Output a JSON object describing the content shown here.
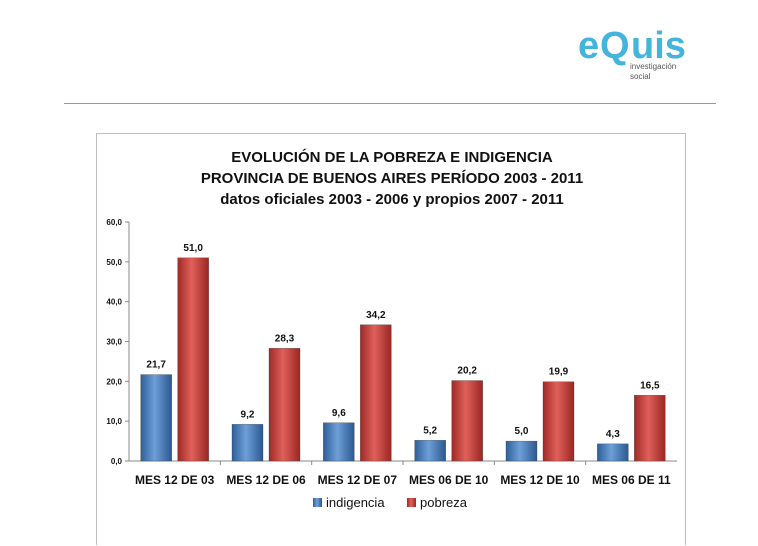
{
  "logo": {
    "brand_pre": "e",
    "brand_q": "Q",
    "brand_post": "uis",
    "line1": "investigación",
    "line2": "social",
    "color": "#43b4dc"
  },
  "chart_data": {
    "type": "bar",
    "title": [
      "EVOLUCIÓN DE LA POBREZA E INDIGENCIA",
      "PROVINCIA DE BUENOS AIRES PERÍODO 2003 - 2011",
      "datos oficiales 2003 - 2006 y propios 2007 - 2011"
    ],
    "categories": [
      "MES 12 DE 03",
      "MES 12 DE 06",
      "MES 12 DE 07",
      "MES 06 DE 10",
      "MES 12 DE 10",
      "MES 06 DE 11"
    ],
    "series": [
      {
        "name": "indigencia",
        "color": "#4f81bd",
        "values": [
          21.7,
          9.2,
          9.6,
          5.2,
          5.0,
          4.3
        ],
        "labels": [
          "21,7",
          "9,2",
          "9,6",
          "5,2",
          "5,0",
          "4,3"
        ]
      },
      {
        "name": "pobreza",
        "color": "#c0504d",
        "values": [
          51.0,
          28.3,
          34.2,
          20.2,
          19.9,
          16.5
        ],
        "labels": [
          "51,0",
          "28,3",
          "34,2",
          "20,2",
          "19,9",
          "16,5"
        ]
      }
    ],
    "ylim": [
      0,
      60
    ],
    "yticks": [
      0,
      10,
      20,
      30,
      40,
      50,
      60
    ],
    "ytick_labels": [
      "0,0",
      "10,0",
      "20,0",
      "30,0",
      "40,0",
      "50,0",
      "60,0"
    ],
    "legend_position": "bottom",
    "grid": false
  }
}
